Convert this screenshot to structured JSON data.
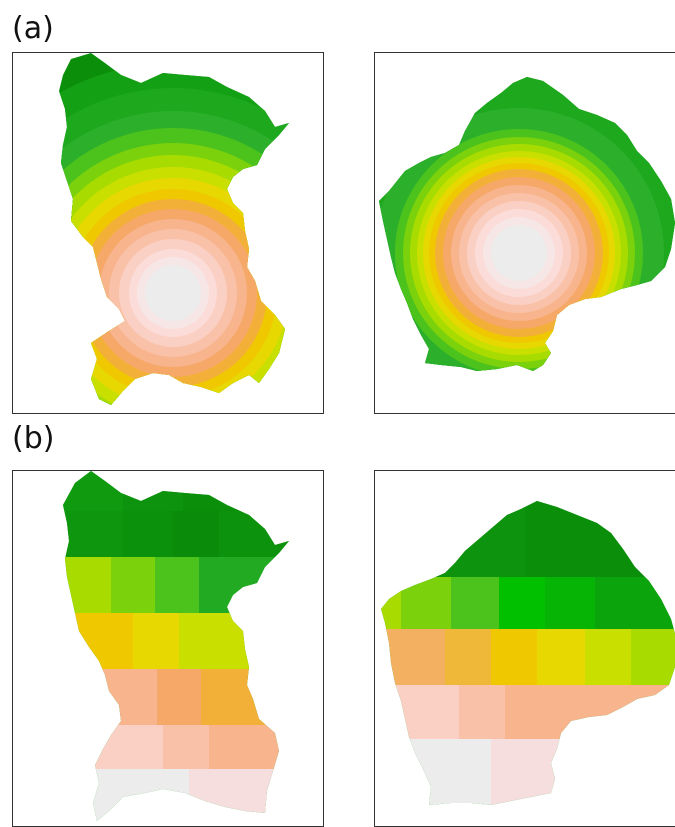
{
  "figure": {
    "label_a": "(a)",
    "label_b": "(b)"
  },
  "palette": {
    "greens": [
      "#0b8f0b",
      "#14a014",
      "#2cb02c",
      "#4cc21c",
      "#7ad10c",
      "#a8dc00"
    ],
    "transition": [
      "#c9df00",
      "#e6d800",
      "#f0c800",
      "#f3b038"
    ],
    "warm": [
      "#f6a868",
      "#f8b48c",
      "#f9c2a8",
      "#fbd0c4",
      "#fcdcd8",
      "#f6e6e6"
    ],
    "center": "#ececec"
  },
  "panels": [
    {
      "id": "a-left",
      "style": "radial"
    },
    {
      "id": "a-right",
      "style": "radial"
    },
    {
      "id": "b-left",
      "style": "grid"
    },
    {
      "id": "b-right",
      "style": "grid"
    }
  ]
}
